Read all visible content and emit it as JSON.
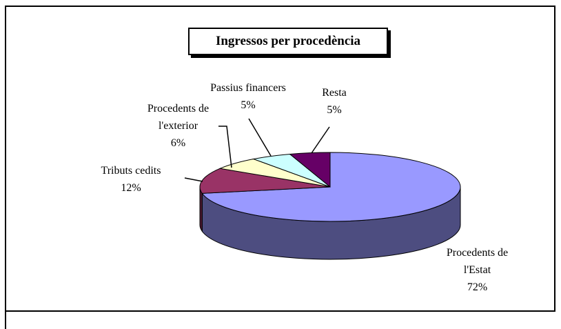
{
  "chart_data": {
    "type": "pie3d",
    "title": "Ingressos per procedència",
    "categories": [
      "Procedents de l'Estat",
      "Tributs cedits",
      "Procedents de l'exterior",
      "Passius financers",
      "Resta"
    ],
    "values": [
      72,
      12,
      6,
      5,
      5
    ],
    "value_labels": [
      "72%",
      "12%",
      "6%",
      "5%",
      "5%"
    ],
    "colors": [
      "#9999ff",
      "#993366",
      "#ffffcc",
      "#ccffff",
      "#660066"
    ]
  }
}
